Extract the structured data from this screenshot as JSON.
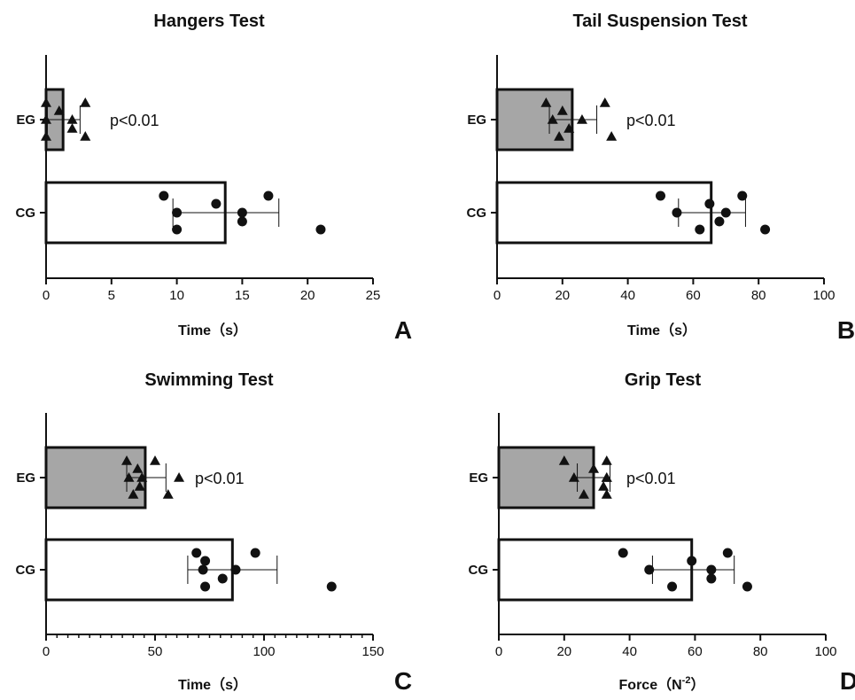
{
  "chart_data": [
    {
      "type": "bar",
      "orientation": "horizontal",
      "panel": "A",
      "title": "Hangers Test",
      "xlabel": "Time（s）",
      "ylabel": "",
      "xlim": [
        0,
        25
      ],
      "xticks": [
        0,
        5,
        10,
        15,
        20,
        25
      ],
      "minor_ticks": false,
      "categories": [
        "EG",
        "CG"
      ],
      "values": [
        1.3,
        13.7
      ],
      "errors": [
        [
          0.1,
          2.6
        ],
        [
          9.7,
          17.8
        ]
      ],
      "points": [
        [
          0,
          0,
          0,
          1,
          2,
          2,
          3,
          3
        ],
        [
          9,
          10,
          10,
          13,
          15,
          15,
          17,
          21
        ]
      ],
      "point_markers": [
        "triangle",
        "circle"
      ],
      "bar_colors": [
        "#a6a6a6",
        "#ffffff"
      ],
      "annotation": "p<0.01",
      "grid": false
    },
    {
      "type": "bar",
      "orientation": "horizontal",
      "panel": "B",
      "title": "Tail Suspension Test",
      "xlabel": "Time（s）",
      "ylabel": "",
      "xlim": [
        0,
        100
      ],
      "xticks": [
        0,
        20,
        40,
        60,
        80,
        100
      ],
      "minor_ticks": false,
      "categories": [
        "EG",
        "CG"
      ],
      "values": [
        23,
        65.5
      ],
      "errors": [
        [
          16,
          30.5
        ],
        [
          55.5,
          76
        ]
      ],
      "points": [
        [
          15,
          17,
          19,
          20,
          22,
          26,
          33,
          35
        ],
        [
          50,
          55,
          62,
          65,
          68,
          70,
          75,
          82
        ]
      ],
      "point_markers": [
        "triangle",
        "circle"
      ],
      "bar_colors": [
        "#a6a6a6",
        "#ffffff"
      ],
      "annotation": "p<0.01",
      "grid": false
    },
    {
      "type": "bar",
      "orientation": "horizontal",
      "panel": "C",
      "title": "Swimming Test",
      "xlabel": "Time（s）",
      "ylabel": "",
      "xlim": [
        0,
        150
      ],
      "xticks": [
        0,
        50,
        100,
        150
      ],
      "minor_ticks": true,
      "categories": [
        "EG",
        "CG"
      ],
      "values": [
        45.5,
        85.5
      ],
      "errors": [
        [
          37,
          55
        ],
        [
          65,
          106
        ]
      ],
      "points": [
        [
          37,
          38,
          40,
          42,
          43,
          44,
          50,
          56,
          61
        ],
        [
          69,
          72,
          73,
          73,
          81,
          87,
          96,
          131
        ]
      ],
      "point_markers": [
        "triangle",
        "circle"
      ],
      "bar_colors": [
        "#a6a6a6",
        "#ffffff"
      ],
      "annotation": "p<0.01",
      "grid": false
    },
    {
      "type": "bar",
      "orientation": "horizontal",
      "panel": "D",
      "title": "Grip Test",
      "xlabel": "Force（N",
      "xlabel_sup": "-2",
      "xlabel_end": "）",
      "ylabel": "",
      "xlim": [
        0,
        100
      ],
      "xticks": [
        0,
        20,
        40,
        60,
        80,
        100
      ],
      "minor_ticks": false,
      "categories": [
        "EG",
        "CG"
      ],
      "values": [
        29,
        59
      ],
      "errors": [
        [
          24,
          34
        ],
        [
          47,
          72
        ]
      ],
      "points": [
        [
          20,
          23,
          26,
          29,
          32,
          33,
          33,
          33,
          33
        ],
        [
          38,
          46,
          53,
          59,
          65,
          65,
          70,
          76
        ]
      ],
      "point_markers": [
        "triangle",
        "circle"
      ],
      "bar_colors": [
        "#a6a6a6",
        "#ffffff"
      ],
      "annotation": "p<0.01",
      "grid": false
    }
  ]
}
